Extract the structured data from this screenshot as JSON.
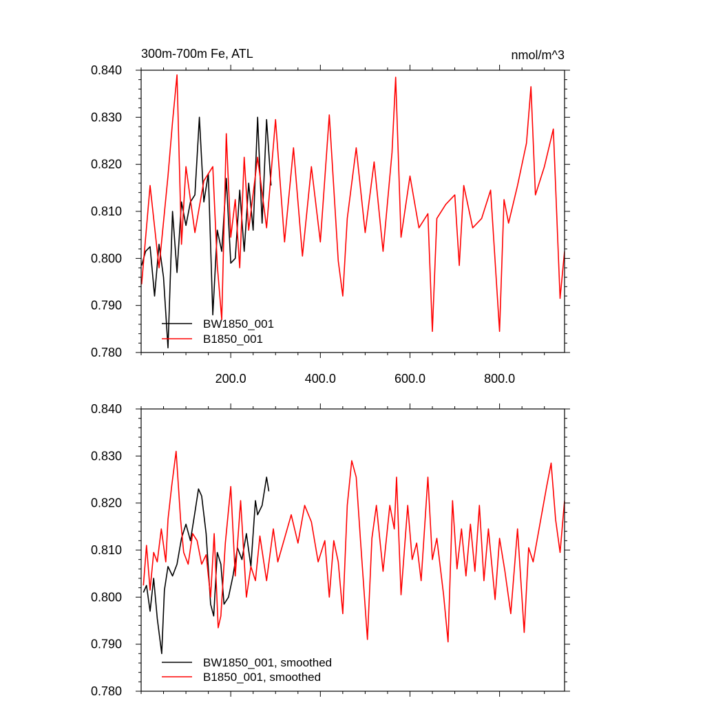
{
  "figure": {
    "background": "#ffffff"
  },
  "chart_data": [
    {
      "type": "line",
      "title": "300m-700m Fe, ATL",
      "units": "nmol/m^3",
      "xlim": [
        0,
        945
      ],
      "ylim": [
        0.78,
        0.84
      ],
      "xticks": [
        200,
        400,
        600,
        800
      ],
      "xtick_labels": [
        "200.0",
        "400.0",
        "600.0",
        "800.0"
      ],
      "yticks": [
        0.78,
        0.79,
        0.8,
        0.81,
        0.82,
        0.83,
        0.84
      ],
      "ytick_labels": [
        "0.780",
        "0.790",
        "0.800",
        "0.810",
        "0.820",
        "0.830",
        "0.840"
      ],
      "legend_position": "bottom-left",
      "series": [
        {
          "name": "BW1850_001",
          "color": "#000000",
          "x": [
            1,
            10,
            20,
            30,
            40,
            50,
            60,
            70,
            80,
            90,
            100,
            110,
            120,
            130,
            140,
            150,
            160,
            170,
            180,
            190,
            200,
            210,
            220,
            230,
            240,
            250,
            260,
            270,
            280,
            290
          ],
          "y": [
            0.7985,
            0.8015,
            0.8025,
            0.792,
            0.803,
            0.796,
            0.781,
            0.81,
            0.797,
            0.812,
            0.807,
            0.812,
            0.8135,
            0.83,
            0.812,
            0.818,
            0.788,
            0.806,
            0.8015,
            0.817,
            0.799,
            0.8,
            0.8145,
            0.8015,
            0.816,
            0.806,
            0.83,
            0.8075,
            0.8295,
            0.8155
          ]
        },
        {
          "name": "B1850_001",
          "color": "#ff0000",
          "x": [
            1,
            20,
            40,
            60,
            70,
            80,
            90,
            100,
            120,
            140,
            160,
            170,
            180,
            190,
            200,
            210,
            220,
            230,
            240,
            260,
            280,
            300,
            320,
            340,
            360,
            380,
            400,
            420,
            440,
            450,
            460,
            480,
            500,
            520,
            540,
            560,
            568,
            580,
            600,
            620,
            640,
            650,
            660,
            680,
            700,
            710,
            720,
            740,
            760,
            780,
            800,
            810,
            820,
            840,
            860,
            870,
            880,
            900,
            920,
            935,
            945
          ],
          "y": [
            0.7945,
            0.8155,
            0.798,
            0.8175,
            0.829,
            0.839,
            0.803,
            0.8195,
            0.8055,
            0.8165,
            0.8195,
            0.7985,
            0.787,
            0.8265,
            0.8045,
            0.8125,
            0.798,
            0.8215,
            0.806,
            0.8215,
            0.8065,
            0.8295,
            0.8035,
            0.8235,
            0.8005,
            0.8195,
            0.8035,
            0.8305,
            0.7995,
            0.792,
            0.8085,
            0.8235,
            0.8055,
            0.8205,
            0.8015,
            0.8225,
            0.8385,
            0.8045,
            0.8175,
            0.8065,
            0.8095,
            0.7845,
            0.8085,
            0.8115,
            0.8135,
            0.7985,
            0.8155,
            0.8065,
            0.8085,
            0.8145,
            0.7845,
            0.8125,
            0.8075,
            0.8155,
            0.8245,
            0.8365,
            0.8135,
            0.8195,
            0.8275,
            0.7915,
            0.8015
          ]
        }
      ]
    },
    {
      "type": "line",
      "xlim": [
        0,
        945
      ],
      "ylim": [
        0.78,
        0.84
      ],
      "xticks": [
        200,
        400,
        600,
        800
      ],
      "yticks": [
        0.78,
        0.79,
        0.8,
        0.81,
        0.82,
        0.83,
        0.84
      ],
      "ytick_labels": [
        "0.780",
        "0.790",
        "0.800",
        "0.810",
        "0.820",
        "0.830",
        "0.840"
      ],
      "legend_position": "bottom-left",
      "series": [
        {
          "name": "BW1850_001, smoothed",
          "color": "#000000",
          "x": [
            5,
            12,
            20,
            28,
            36,
            46,
            52,
            60,
            70,
            80,
            90,
            100,
            110,
            120,
            128,
            135,
            145,
            155,
            162,
            170,
            178,
            185,
            195,
            205,
            215,
            225,
            235,
            245,
            255,
            260,
            270,
            280,
            285
          ],
          "y": [
            0.801,
            0.8025,
            0.797,
            0.804,
            0.7955,
            0.788,
            0.8015,
            0.8065,
            0.8045,
            0.807,
            0.8125,
            0.8155,
            0.812,
            0.818,
            0.823,
            0.8215,
            0.8135,
            0.7985,
            0.796,
            0.8095,
            0.807,
            0.7985,
            0.8,
            0.8045,
            0.8105,
            0.808,
            0.8135,
            0.8065,
            0.8205,
            0.8175,
            0.8195,
            0.8255,
            0.8225
          ]
        },
        {
          "name": "B1850_001, smoothed",
          "color": "#ff0000",
          "x": [
            5,
            12,
            20,
            28,
            36,
            45,
            55,
            60,
            68,
            78,
            88,
            95,
            105,
            115,
            125,
            135,
            145,
            155,
            163,
            172,
            178,
            188,
            200,
            210,
            222,
            235,
            245,
            255,
            265,
            280,
            295,
            305,
            320,
            335,
            350,
            365,
            380,
            395,
            410,
            420,
            430,
            440,
            450,
            460,
            470,
            480,
            490,
            505,
            515,
            525,
            540,
            555,
            565,
            570,
            580,
            595,
            605,
            615,
            625,
            640,
            650,
            660,
            675,
            685,
            695,
            705,
            715,
            725,
            735,
            745,
            755,
            765,
            775,
            790,
            800,
            812,
            825,
            840,
            855,
            865,
            875,
            890,
            905,
            915,
            925,
            935,
            945
          ],
          "y": [
            0.8025,
            0.811,
            0.8015,
            0.8095,
            0.8075,
            0.8145,
            0.8075,
            0.8165,
            0.8235,
            0.831,
            0.8165,
            0.8095,
            0.807,
            0.8135,
            0.812,
            0.807,
            0.809,
            0.8,
            0.8135,
            0.7935,
            0.796,
            0.8115,
            0.8235,
            0.8045,
            0.8205,
            0.8,
            0.8065,
            0.8035,
            0.813,
            0.8035,
            0.8145,
            0.8075,
            0.8125,
            0.8175,
            0.8115,
            0.8195,
            0.816,
            0.8075,
            0.812,
            0.8,
            0.812,
            0.8075,
            0.7965,
            0.8195,
            0.829,
            0.8255,
            0.8115,
            0.791,
            0.8125,
            0.8195,
            0.8055,
            0.8195,
            0.8145,
            0.8255,
            0.8005,
            0.8195,
            0.808,
            0.8115,
            0.8035,
            0.8255,
            0.808,
            0.8125,
            0.8005,
            0.7905,
            0.8205,
            0.806,
            0.8145,
            0.8045,
            0.8155,
            0.8055,
            0.8195,
            0.8035,
            0.8145,
            0.7995,
            0.8125,
            0.8055,
            0.7965,
            0.8145,
            0.7925,
            0.8105,
            0.8075,
            0.8155,
            0.8235,
            0.8285,
            0.8165,
            0.8095,
            0.8205
          ]
        }
      ]
    }
  ]
}
